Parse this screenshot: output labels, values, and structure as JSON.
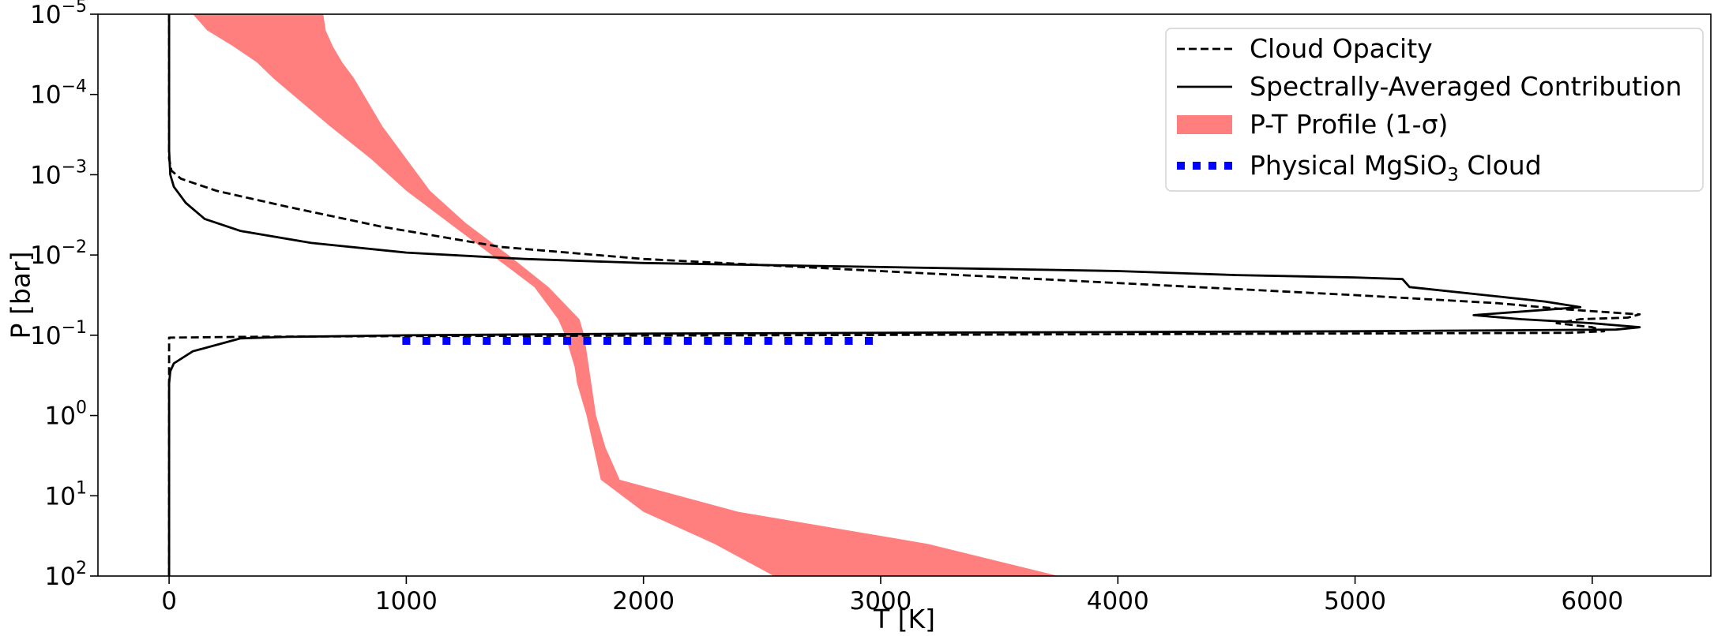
{
  "chart_data": {
    "type": "line",
    "xlabel": "T [K]",
    "ylabel": "P [bar]",
    "xlim": [
      -300,
      6500
    ],
    "ylim_exponents": [
      -5,
      2
    ],
    "y_scale": "log",
    "y_inverted": true,
    "grid": false,
    "legend_position": "top-right",
    "x_ticks": [
      {
        "v": 0,
        "label": "0"
      },
      {
        "v": 1000,
        "label": "1000"
      },
      {
        "v": 2000,
        "label": "2000"
      },
      {
        "v": 3000,
        "label": "3000"
      },
      {
        "v": 4000,
        "label": "4000"
      },
      {
        "v": 5000,
        "label": "5000"
      },
      {
        "v": 6000,
        "label": "6000"
      }
    ],
    "y_ticks": [
      {
        "e": -5,
        "base": "10",
        "exp": "−5"
      },
      {
        "e": -4,
        "base": "10",
        "exp": "−4"
      },
      {
        "e": -3,
        "base": "10",
        "exp": "−3"
      },
      {
        "e": -2,
        "base": "10",
        "exp": "−2"
      },
      {
        "e": -1,
        "base": "10",
        "exp": "−1"
      },
      {
        "e": 0,
        "base": "10",
        "exp": "0"
      },
      {
        "e": 1,
        "base": "10",
        "exp": "1"
      },
      {
        "e": 2,
        "base": "10",
        "exp": "2"
      }
    ],
    "colors": {
      "pt_band": "#ff7f7f",
      "cloud": "#0000ff",
      "lines": "#000000"
    },
    "legend": [
      {
        "key": "cloud_opacity",
        "style": "dashed",
        "label": "Cloud Opacity"
      },
      {
        "key": "contribution",
        "style": "solid",
        "label": "Spectrally-Averaged Contribution"
      },
      {
        "key": "pt_profile",
        "style": "band",
        "label": "P-T Profile (1-σ)"
      },
      {
        "key": "physical_cloud",
        "style": "dotted",
        "label_pre": "Physical MgSiO",
        "label_sub": "3",
        "label_post": " Cloud"
      }
    ],
    "series": {
      "pt_profile_band": {
        "name": "P-T Profile (1-σ)",
        "log10P": [
          -5,
          -4.8,
          -4.6,
          -4.4,
          -4.2,
          -4.0,
          -3.6,
          -3.2,
          -2.8,
          -2.4,
          -2.0,
          -1.6,
          -1.2,
          -1.0,
          -0.8,
          -0.6,
          -0.4,
          0,
          0.4,
          0.8,
          1.2,
          1.6,
          2.0
        ],
        "T_low": [
          100,
          160,
          270,
          370,
          440,
          520,
          680,
          850,
          1000,
          1180,
          1360,
          1540,
          1640,
          1670,
          1690,
          1710,
          1720,
          1760,
          1790,
          1820,
          2000,
          2300,
          2550
        ],
        "T_high": [
          650,
          660,
          690,
          730,
          780,
          820,
          900,
          1000,
          1100,
          1250,
          1430,
          1600,
          1730,
          1750,
          1760,
          1770,
          1780,
          1800,
          1840,
          1900,
          2400,
          3200,
          3750
        ]
      },
      "cloud_opacity": {
        "name": "Cloud Opacity",
        "T": [
          0,
          0,
          0,
          0,
          10,
          50,
          200,
          500,
          900,
          1400,
          2000,
          3000,
          4000,
          5000,
          5600,
          5900,
          6100,
          6200,
          6150,
          5950,
          5850,
          6000,
          6050,
          5900,
          2500,
          1000,
          300,
          0,
          0,
          0
        ],
        "log10P": [
          -5,
          -4,
          -3.5,
          -3.2,
          -3.05,
          -2.95,
          -2.8,
          -2.6,
          -2.35,
          -2.1,
          -1.95,
          -1.8,
          -1.65,
          -1.5,
          -1.4,
          -1.32,
          -1.28,
          -1.26,
          -1.22,
          -1.2,
          -1.15,
          -1.1,
          -1.05,
          -1.03,
          -1.0,
          -0.99,
          -0.98,
          -0.97,
          -0.8,
          2
        ]
      },
      "contribution": {
        "name": "Spectrally-Averaged Contribution",
        "T": [
          0,
          0,
          0,
          5,
          20,
          70,
          150,
          300,
          600,
          1000,
          1500,
          2000,
          3000,
          4000,
          4500,
          5000,
          5200,
          5230,
          5800,
          5950,
          5500,
          5700,
          6000,
          6200,
          6100,
          5000,
          3000,
          2000,
          1000,
          500,
          300,
          100,
          20,
          5,
          0,
          0
        ],
        "log10P": [
          -5,
          -4,
          -3.3,
          -3.0,
          -2.85,
          -2.65,
          -2.45,
          -2.3,
          -2.15,
          -2.03,
          -1.95,
          -1.9,
          -1.85,
          -1.8,
          -1.75,
          -1.72,
          -1.7,
          -1.6,
          -1.42,
          -1.35,
          -1.25,
          -1.2,
          -1.15,
          -1.1,
          -1.07,
          -1.05,
          -1.03,
          -1.02,
          -1.0,
          -0.98,
          -0.96,
          -0.8,
          -0.65,
          -0.55,
          -0.4,
          2
        ]
      },
      "physical_cloud": {
        "name": "Physical MgSiO3 Cloud",
        "T_range": [
          1000,
          2950
        ],
        "log10P": -0.93
      }
    }
  }
}
